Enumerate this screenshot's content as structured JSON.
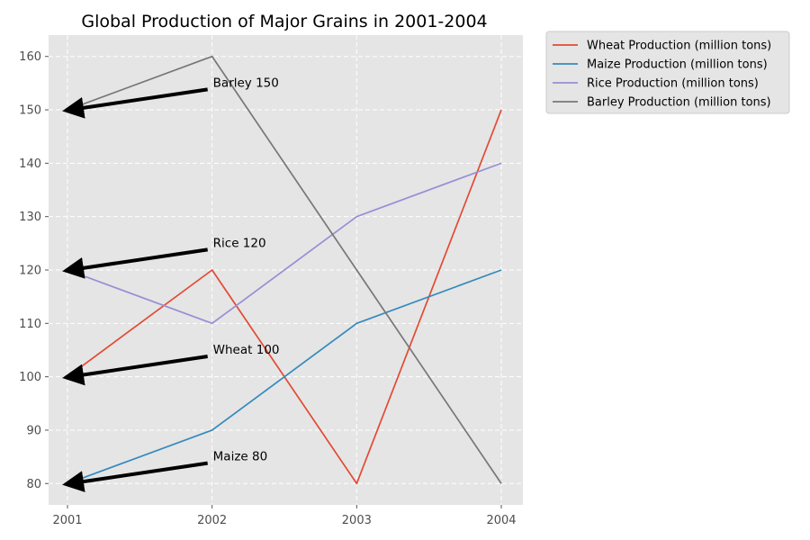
{
  "chart_data": {
    "type": "line",
    "title": "Global Production of Major Grains in 2001-2004",
    "xlabel": "",
    "ylabel": "",
    "categories": [
      "2001",
      "2002",
      "2003",
      "2004"
    ],
    "ylim": [
      76,
      164
    ],
    "yticks": [
      80,
      90,
      100,
      110,
      120,
      130,
      140,
      150,
      160
    ],
    "grid": true,
    "legend_position": "outside-top-right",
    "series": [
      {
        "name": "Wheat Production (million tons)",
        "values": [
          100,
          120,
          80,
          150
        ],
        "color": "#E24A33"
      },
      {
        "name": "Maize Production (million tons)",
        "values": [
          80,
          90,
          110,
          120
        ],
        "color": "#348ABD"
      },
      {
        "name": "Rice Production (million tons)",
        "values": [
          120,
          110,
          130,
          140
        ],
        "color": "#988ED5"
      },
      {
        "name": "Barley Production (million tons)",
        "values": [
          150,
          160,
          120,
          80
        ],
        "color": "#777777"
      }
    ],
    "annotations": [
      {
        "text": "Barley 150",
        "x": "2001",
        "y": 150,
        "text_x": "2002",
        "text_y": 155
      },
      {
        "text": "Rice 120",
        "x": "2001",
        "y": 120,
        "text_x": "2002",
        "text_y": 125
      },
      {
        "text": "Wheat 100",
        "x": "2001",
        "y": 100,
        "text_x": "2002",
        "text_y": 105
      },
      {
        "text": "Maize 80",
        "x": "2001",
        "y": 80,
        "text_x": "2002",
        "text_y": 85
      }
    ]
  }
}
